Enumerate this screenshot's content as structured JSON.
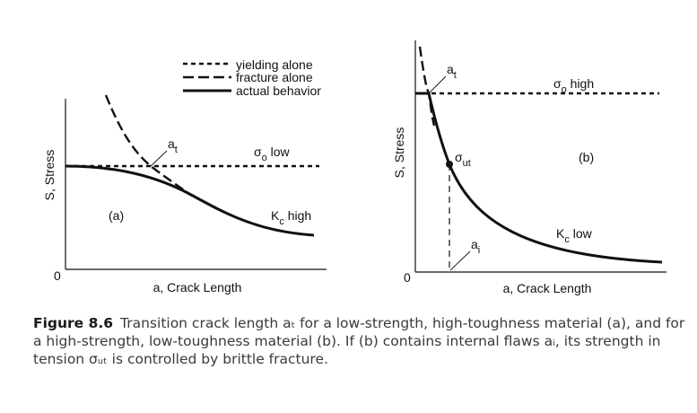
{
  "legend": {
    "items": [
      {
        "label": "yielding alone",
        "style": "short-dash"
      },
      {
        "label": "fracture alone",
        "style": "long-dash"
      },
      {
        "label": "actual behavior",
        "style": "solid"
      }
    ]
  },
  "panel_a": {
    "panel_label": "(a)",
    "ylabel": "S, Stress",
    "xlabel": "a, Crack Length",
    "origin_label": "0",
    "label_at_main": "a",
    "label_at_sub": "t",
    "label_sigma_main": "σ",
    "label_sigma_sub": "o",
    "label_sigma_tail": " low",
    "label_kc_main": "K",
    "label_kc_sub": "c",
    "label_kc_tail": " high"
  },
  "panel_b": {
    "panel_label": "(b)",
    "ylabel": "S, Stress",
    "xlabel": "a, Crack Length",
    "origin_label": "0",
    "label_at_main": "a",
    "label_at_sub": "t",
    "label_sigma_main": "σ",
    "label_sigma_sub": "o",
    "label_sigma_tail": " high",
    "label_sigmaut_main": "σ",
    "label_sigmaut_sub": "ut",
    "label_kc_main": "K",
    "label_kc_sub": "c",
    "label_kc_tail": " low",
    "label_ai_main": "a",
    "label_ai_sub": "i"
  },
  "caption": {
    "label": "Figure 8.6",
    "text": "Transition crack length aₜ for a low-strength, high-toughness material (a), and for a high-strength, low-toughness material (b). If (b) contains internal flaws aᵢ, its strength in tension σᵤₜ is controlled by brittle fracture."
  }
}
